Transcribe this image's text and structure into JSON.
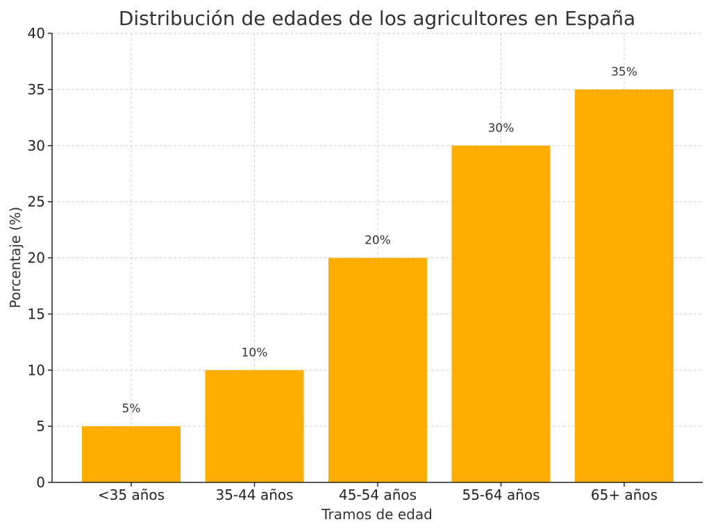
{
  "chart_data": {
    "type": "bar",
    "title": "Distribución de edades de los agricultores en España",
    "xlabel": "Tramos de edad",
    "ylabel": "Porcentaje (%)",
    "categories": [
      "<35 años",
      "35-44 años",
      "45-54 años",
      "55-64 años",
      "65+ años"
    ],
    "values": [
      5,
      10,
      20,
      30,
      35
    ],
    "data_labels": [
      "5%",
      "10%",
      "20%",
      "30%",
      "35%"
    ],
    "ylim": [
      0,
      40
    ],
    "yticks": [
      0,
      5,
      10,
      15,
      20,
      25,
      30,
      35,
      40
    ],
    "grid": true,
    "bar_color": "#FFAE00"
  }
}
